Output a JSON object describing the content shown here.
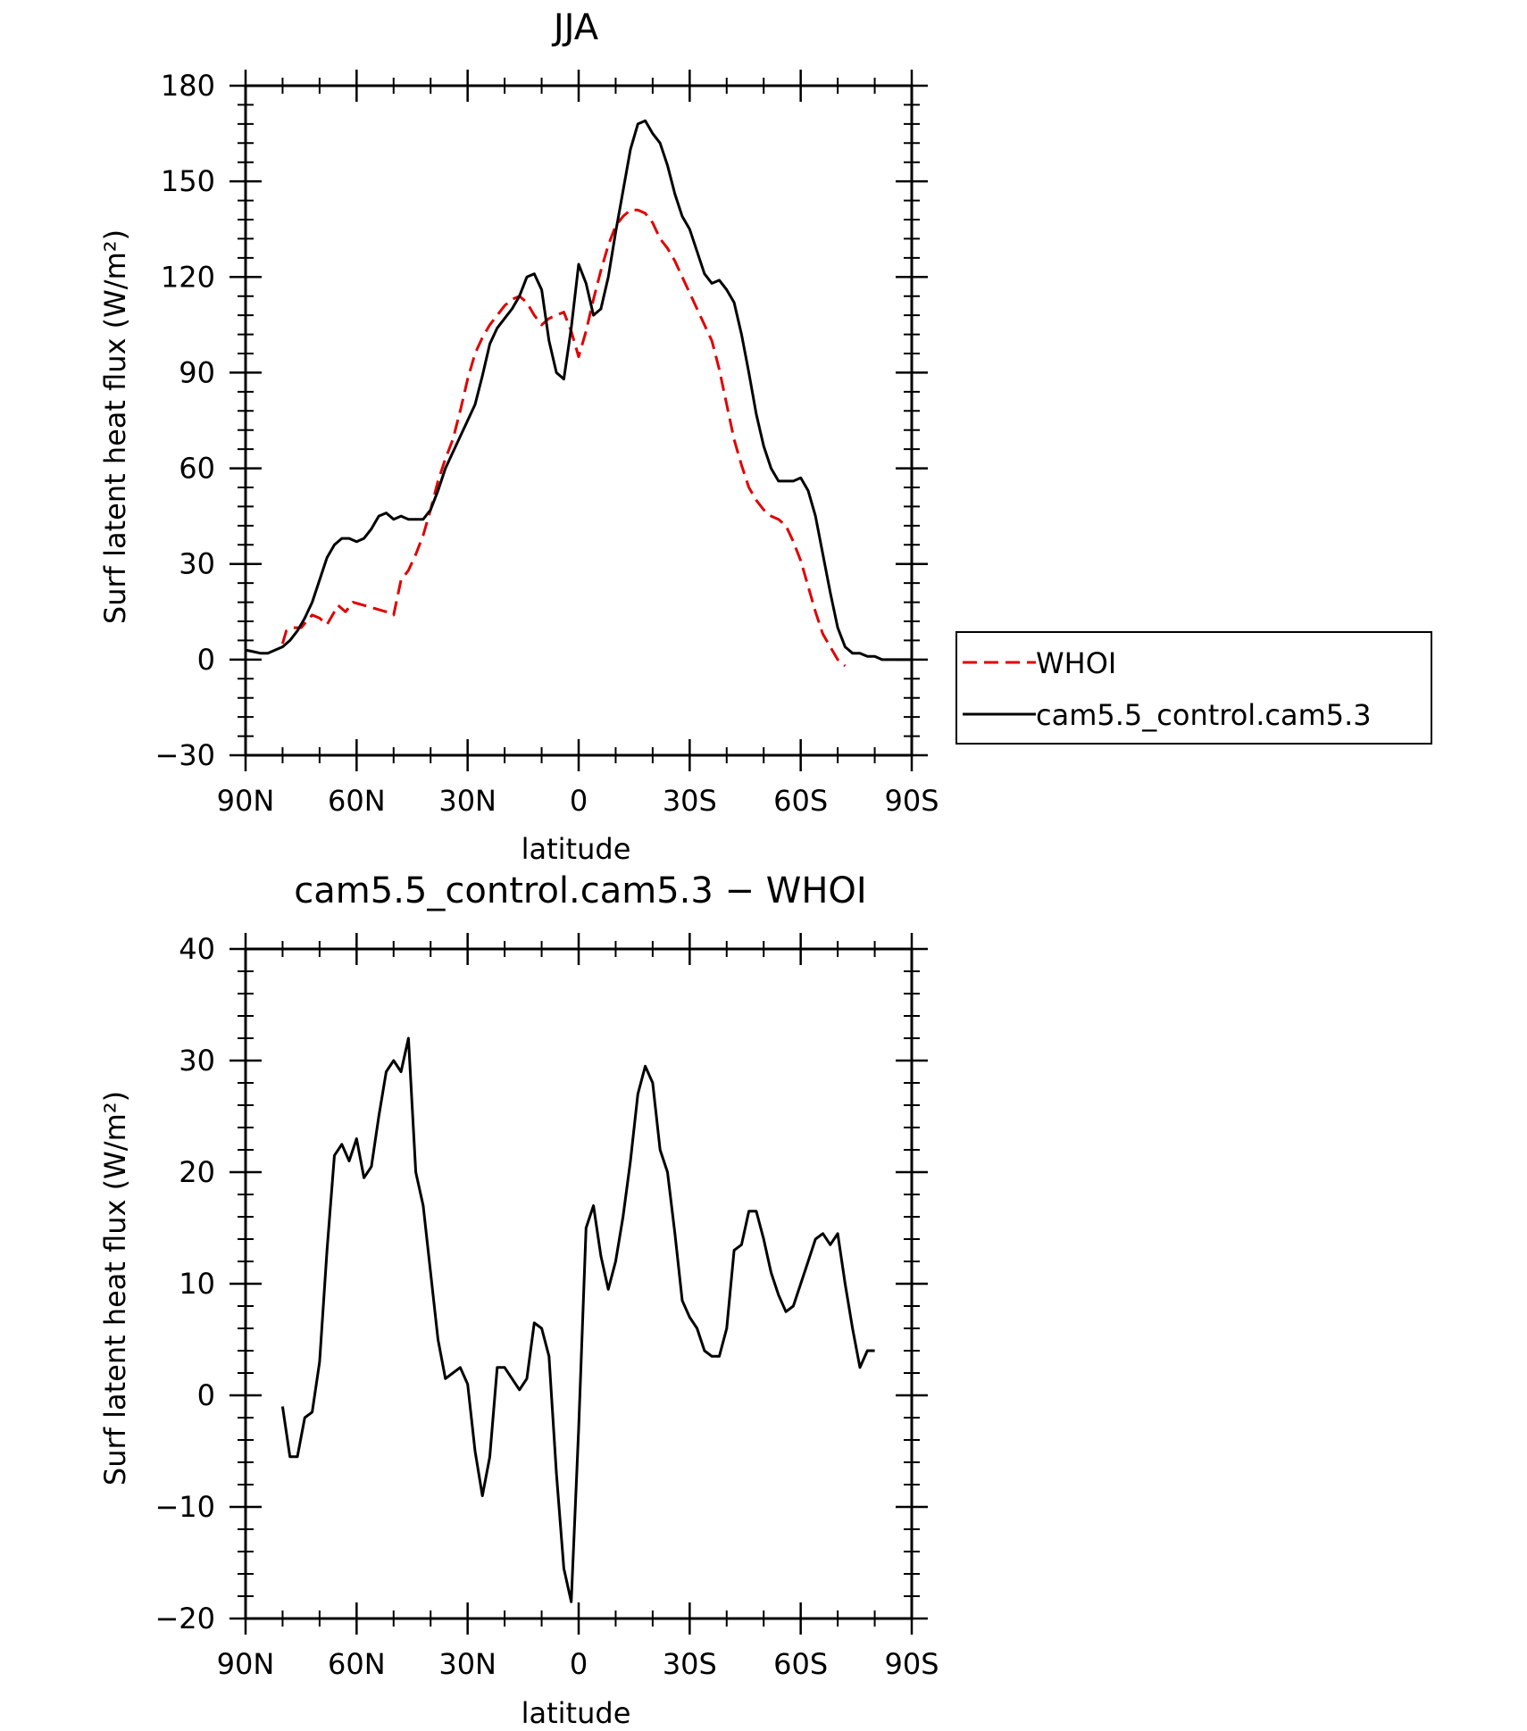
{
  "chart_data": [
    {
      "type": "line",
      "title": "JJA",
      "xlabel": "latitude",
      "ylabel": "Surf latent heat flux (W/m²)",
      "xlim": [
        90,
        -90
      ],
      "ylim": [
        -30,
        180
      ],
      "yticks": [
        -30,
        0,
        30,
        60,
        90,
        120,
        150,
        180
      ],
      "yticklabels": [
        "−30",
        "0",
        "30",
        "60",
        "90",
        "120",
        "150",
        "180"
      ],
      "xticks": [
        90,
        60,
        30,
        0,
        -30,
        -60,
        -90
      ],
      "xticklabels": [
        "90N",
        "60N",
        "30N",
        "0",
        "30S",
        "60S",
        "90S"
      ],
      "legend": "right",
      "series": [
        {
          "name": "WHOI",
          "color": "#e00000",
          "dash": true,
          "points": [
            [
              80,
              5
            ],
            [
              79,
              9
            ],
            [
              77,
              10
            ],
            [
              75,
              10
            ],
            [
              72,
              14
            ],
            [
              70,
              13
            ],
            [
              68,
              11
            ],
            [
              65,
              17
            ],
            [
              63,
              15
            ],
            [
              61,
              18
            ],
            [
              58,
              17
            ],
            [
              55,
              16
            ],
            [
              52,
              15
            ],
            [
              50,
              14
            ],
            [
              48,
              25
            ],
            [
              46,
              28
            ],
            [
              44,
              33
            ],
            [
              42,
              39
            ],
            [
              40,
              47
            ],
            [
              38,
              56
            ],
            [
              36,
              63
            ],
            [
              34,
              69
            ],
            [
              32,
              78
            ],
            [
              30,
              88
            ],
            [
              28,
              96
            ],
            [
              26,
              101
            ],
            [
              24,
              105
            ],
            [
              22,
              108
            ],
            [
              20,
              111
            ],
            [
              18,
              113
            ],
            [
              16,
              114
            ],
            [
              14,
              112
            ],
            [
              12,
              108
            ],
            [
              10,
              105
            ],
            [
              8,
              107
            ],
            [
              6,
              108
            ],
            [
              4,
              109
            ],
            [
              2,
              103
            ],
            [
              0,
              95
            ],
            [
              -2,
              103
            ],
            [
              -4,
              113
            ],
            [
              -6,
              122
            ],
            [
              -8,
              130
            ],
            [
              -10,
              136
            ],
            [
              -12,
              139
            ],
            [
              -14,
              141
            ],
            [
              -16,
              141
            ],
            [
              -18,
              140
            ],
            [
              -20,
              137
            ],
            [
              -22,
              132
            ],
            [
              -24,
              129
            ],
            [
              -26,
              125
            ],
            [
              -28,
              120
            ],
            [
              -30,
              115
            ],
            [
              -32,
              110
            ],
            [
              -34,
              105
            ],
            [
              -36,
              100
            ],
            [
              -38,
              91
            ],
            [
              -40,
              80
            ],
            [
              -42,
              69
            ],
            [
              -44,
              61
            ],
            [
              -46,
              54
            ],
            [
              -48,
              50
            ],
            [
              -50,
              47
            ],
            [
              -52,
              45
            ],
            [
              -54,
              44
            ],
            [
              -56,
              42
            ],
            [
              -58,
              37
            ],
            [
              -60,
              31
            ],
            [
              -62,
              23
            ],
            [
              -64,
              15
            ],
            [
              -66,
              8
            ],
            [
              -68,
              4
            ],
            [
              -70,
              0
            ],
            [
              -72,
              -2
            ]
          ]
        },
        {
          "name": "cam5.5_control.cam5.3",
          "color": "#000000",
          "dash": false,
          "points": [
            [
              90,
              3
            ],
            [
              88,
              2.5
            ],
            [
              86,
              2
            ],
            [
              84,
              2
            ],
            [
              82,
              3
            ],
            [
              80,
              4
            ],
            [
              78,
              6
            ],
            [
              76,
              9
            ],
            [
              74,
              13
            ],
            [
              72,
              18
            ],
            [
              70,
              25
            ],
            [
              68,
              32
            ],
            [
              66,
              36
            ],
            [
              64,
              38
            ],
            [
              62,
              38
            ],
            [
              60,
              37
            ],
            [
              58,
              38
            ],
            [
              56,
              41
            ],
            [
              54,
              45
            ],
            [
              52,
              46
            ],
            [
              50,
              44
            ],
            [
              48,
              45
            ],
            [
              46,
              44
            ],
            [
              44,
              44
            ],
            [
              42,
              44
            ],
            [
              40,
              47
            ],
            [
              38,
              53
            ],
            [
              36,
              60
            ],
            [
              34,
              65
            ],
            [
              32,
              70
            ],
            [
              30,
              75
            ],
            [
              28,
              80
            ],
            [
              26,
              89
            ],
            [
              24,
              99
            ],
            [
              22,
              104
            ],
            [
              20,
              107
            ],
            [
              18,
              110
            ],
            [
              16,
              114
            ],
            [
              14,
              120
            ],
            [
              12,
              121
            ],
            [
              10,
              116
            ],
            [
              8,
              100
            ],
            [
              6,
              90
            ],
            [
              4,
              88
            ],
            [
              2,
              104
            ],
            [
              0,
              124
            ],
            [
              -2,
              118
            ],
            [
              -4,
              108
            ],
            [
              -6,
              110
            ],
            [
              -8,
              120
            ],
            [
              -10,
              134
            ],
            [
              -12,
              147
            ],
            [
              -14,
              160
            ],
            [
              -16,
              168
            ],
            [
              -18,
              169
            ],
            [
              -20,
              165
            ],
            [
              -22,
              162
            ],
            [
              -24,
              155
            ],
            [
              -26,
              146
            ],
            [
              -28,
              139
            ],
            [
              -30,
              135
            ],
            [
              -32,
              128
            ],
            [
              -34,
              121
            ],
            [
              -36,
              118
            ],
            [
              -38,
              119
            ],
            [
              -40,
              116
            ],
            [
              -42,
              112
            ],
            [
              -44,
              102
            ],
            [
              -46,
              90
            ],
            [
              -48,
              77
            ],
            [
              -50,
              67
            ],
            [
              -52,
              60
            ],
            [
              -54,
              56
            ],
            [
              -56,
              56
            ],
            [
              -58,
              56
            ],
            [
              -60,
              57
            ],
            [
              -62,
              53
            ],
            [
              -64,
              45
            ],
            [
              -66,
              33
            ],
            [
              -68,
              21
            ],
            [
              -70,
              10
            ],
            [
              -72,
              4
            ],
            [
              -74,
              2
            ],
            [
              -76,
              2
            ],
            [
              -78,
              1
            ],
            [
              -80,
              1
            ],
            [
              -82,
              0
            ],
            [
              -84,
              0
            ],
            [
              -86,
              0
            ],
            [
              -88,
              0
            ],
            [
              -90,
              0
            ]
          ]
        }
      ]
    },
    {
      "type": "line",
      "title": "cam5.5_control.cam5.3 − WHOI",
      "xlabel": "latitude",
      "ylabel": "Surf latent heat flux (W/m²)",
      "xlim": [
        90,
        -90
      ],
      "ylim": [
        -20,
        40
      ],
      "yticks": [
        -20,
        -10,
        0,
        10,
        20,
        30,
        40
      ],
      "yticklabels": [
        "−20",
        "−10",
        "0",
        "10",
        "20",
        "30",
        "40"
      ],
      "xticks": [
        90,
        60,
        30,
        0,
        -30,
        -60,
        -90
      ],
      "xticklabels": [
        "90N",
        "60N",
        "30N",
        "0",
        "30S",
        "60S",
        "90S"
      ],
      "series": [
        {
          "color": "#000000",
          "dash": false,
          "points": [
            [
              80,
              -1
            ],
            [
              78,
              -5.5
            ],
            [
              76,
              -5.5
            ],
            [
              74,
              -2
            ],
            [
              72,
              -1.5
            ],
            [
              70,
              3
            ],
            [
              68,
              13
            ],
            [
              66,
              21.5
            ],
            [
              64,
              22.5
            ],
            [
              62,
              21
            ],
            [
              60,
              23
            ],
            [
              58,
              19.5
            ],
            [
              56,
              20.5
            ],
            [
              54,
              25
            ],
            [
              52,
              29
            ],
            [
              50,
              30
            ],
            [
              48,
              29
            ],
            [
              46,
              32
            ],
            [
              44,
              20
            ],
            [
              42,
              17
            ],
            [
              40,
              11
            ],
            [
              38,
              5
            ],
            [
              36,
              1.5
            ],
            [
              34,
              2
            ],
            [
              32,
              2.5
            ],
            [
              30,
              1
            ],
            [
              28,
              -5
            ],
            [
              26,
              -9
            ],
            [
              24,
              -5.5
            ],
            [
              22,
              2.5
            ],
            [
              20,
              2.5
            ],
            [
              18,
              1.5
            ],
            [
              16,
              0.5
            ],
            [
              14,
              1.5
            ],
            [
              12,
              6.5
            ],
            [
              10,
              6
            ],
            [
              8,
              3.5
            ],
            [
              6,
              -7
            ],
            [
              4,
              -15.5
            ],
            [
              2,
              -18.5
            ],
            [
              0,
              -3
            ],
            [
              -2,
              15
            ],
            [
              -4,
              17
            ],
            [
              -6,
              12.5
            ],
            [
              -8,
              9.5
            ],
            [
              -10,
              12
            ],
            [
              -12,
              16
            ],
            [
              -14,
              21
            ],
            [
              -16,
              27
            ],
            [
              -18,
              29.5
            ],
            [
              -20,
              28
            ],
            [
              -22,
              22
            ],
            [
              -24,
              20
            ],
            [
              -26,
              14.5
            ],
            [
              -28,
              8.5
            ],
            [
              -30,
              7
            ],
            [
              -32,
              6
            ],
            [
              -34,
              4
            ],
            [
              -36,
              3.5
            ],
            [
              -38,
              3.5
            ],
            [
              -40,
              6
            ],
            [
              -42,
              13
            ],
            [
              -44,
              13.5
            ],
            [
              -46,
              16.5
            ],
            [
              -48,
              16.5
            ],
            [
              -50,
              14
            ],
            [
              -52,
              11
            ],
            [
              -54,
              9
            ],
            [
              -56,
              7.5
            ],
            [
              -58,
              8
            ],
            [
              -60,
              10
            ],
            [
              -62,
              12
            ],
            [
              -64,
              14
            ],
            [
              -66,
              14.5
            ],
            [
              -68,
              13.5
            ],
            [
              -70,
              14.5
            ],
            [
              -72,
              10
            ],
            [
              -74,
              6
            ],
            [
              -76,
              2.5
            ],
            [
              -78,
              4
            ],
            [
              -80,
              4
            ]
          ]
        }
      ]
    }
  ]
}
